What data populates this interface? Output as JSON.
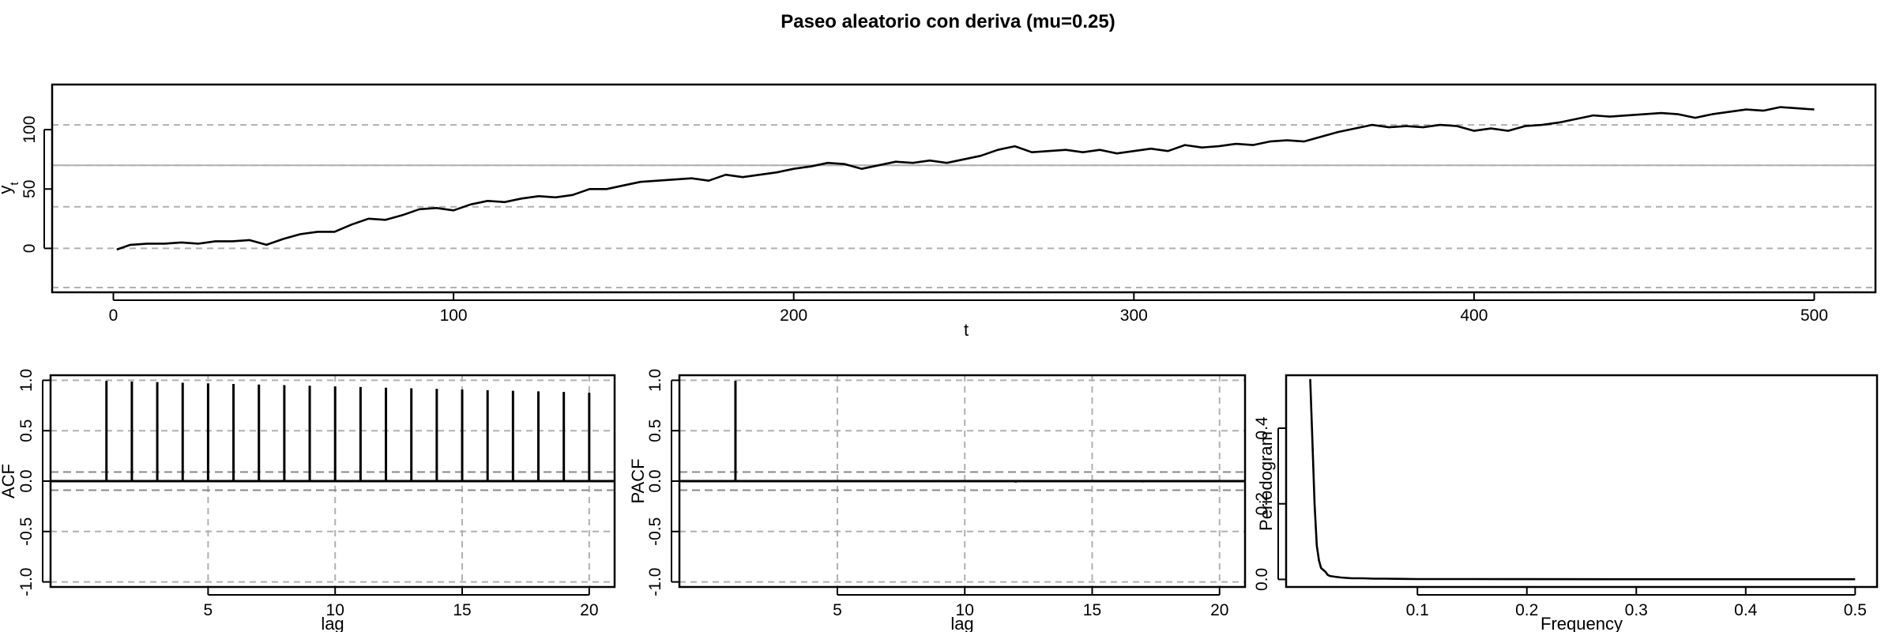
{
  "title": "Paseo aleatorio con deriva (mu=0.25)",
  "chart_data": [
    {
      "type": "line",
      "title": "",
      "xlabel": "t",
      "ylabel": "y",
      "ylabel_subscript": "t",
      "xlim": [
        -18,
        518
      ],
      "ylim": [
        -37,
        138
      ],
      "xticks": [
        0,
        100,
        200,
        300,
        400,
        500
      ],
      "yticks": [
        0,
        50,
        100
      ],
      "hlines_dashed": [
        -33,
        0,
        35,
        70,
        104,
        138
      ],
      "hline_solid": 70,
      "series": [
        {
          "x": [
            1,
            5,
            10,
            15,
            20,
            25,
            30,
            35,
            40,
            45,
            50,
            55,
            60,
            65,
            70,
            75,
            80,
            85,
            90,
            95,
            100,
            105,
            110,
            115,
            120,
            125,
            130,
            135,
            140,
            145,
            150,
            155,
            160,
            165,
            170,
            175,
            180,
            185,
            190,
            195,
            200,
            205,
            210,
            215,
            220,
            225,
            230,
            235,
            240,
            245,
            250,
            255,
            260,
            265,
            270,
            275,
            280,
            285,
            290,
            295,
            300,
            305,
            310,
            315,
            320,
            325,
            330,
            335,
            340,
            345,
            350,
            355,
            360,
            365,
            370,
            375,
            380,
            385,
            390,
            395,
            400,
            405,
            410,
            415,
            420,
            425,
            430,
            435,
            440,
            445,
            450,
            455,
            460,
            465,
            470,
            475,
            480,
            485,
            490,
            495,
            500
          ],
          "values": [
            -1,
            3,
            4,
            4,
            5,
            4,
            6,
            6,
            7,
            3,
            8,
            12,
            14,
            14,
            20,
            25,
            24,
            28,
            33,
            34,
            32,
            37,
            40,
            39,
            42,
            44,
            43,
            45,
            50,
            50,
            53,
            56,
            57,
            58,
            59,
            57,
            62,
            60,
            62,
            64,
            67,
            69,
            72,
            71,
            67,
            70,
            73,
            72,
            74,
            72,
            75,
            78,
            83,
            86,
            81,
            82,
            83,
            81,
            83,
            80,
            82,
            84,
            82,
            87,
            85,
            86,
            88,
            87,
            90,
            91,
            90,
            94,
            98,
            101,
            104,
            102,
            103,
            102,
            104,
            103,
            99,
            101,
            99,
            103,
            104,
            106,
            109,
            112,
            111,
            112,
            113,
            114,
            113,
            110,
            113,
            115,
            117,
            116,
            119,
            118,
            117
          ]
        }
      ]
    },
    {
      "type": "bar",
      "title": "",
      "xlabel": "lag",
      "ylabel": "ACF",
      "xlim": [
        -1.2,
        21
      ],
      "ylim": [
        -1.05,
        1.05
      ],
      "xticks": [
        5,
        10,
        15,
        20
      ],
      "yticks": [
        -1.0,
        -0.5,
        0.0,
        0.5,
        1.0
      ],
      "conf_limit": 0.09,
      "x": [
        1,
        2,
        3,
        4,
        5,
        6,
        7,
        8,
        9,
        10,
        11,
        12,
        13,
        14,
        15,
        16,
        17,
        18,
        19,
        20
      ],
      "values": [
        0.994,
        0.988,
        0.982,
        0.976,
        0.97,
        0.964,
        0.958,
        0.952,
        0.946,
        0.939,
        0.933,
        0.927,
        0.921,
        0.915,
        0.909,
        0.902,
        0.896,
        0.89,
        0.884,
        0.877
      ]
    },
    {
      "type": "bar",
      "title": "",
      "xlabel": "lag",
      "ylabel": "PACF",
      "xlim": [
        -1.2,
        21
      ],
      "ylim": [
        -1.05,
        1.05
      ],
      "xticks": [
        5,
        10,
        15,
        20
      ],
      "yticks": [
        -1.0,
        -0.5,
        0.0,
        0.5,
        1.0
      ],
      "conf_limit": 0.09,
      "x": [
        1,
        2,
        3,
        4,
        5,
        6,
        7,
        8,
        9,
        10,
        11,
        12,
        13,
        14,
        15,
        16,
        17,
        18,
        19,
        20
      ],
      "values": [
        0.994,
        -0.005,
        0.004,
        0.003,
        0.006,
        -0.004,
        0.003,
        0.002,
        0.012,
        -0.003,
        0.004,
        -0.015,
        0.002,
        0.003,
        -0.004,
        0.006,
        -0.013,
        0.004,
        -0.003,
        0.002
      ]
    },
    {
      "type": "line",
      "title": "",
      "xlabel": "Frequency",
      "ylabel": "Periodogram",
      "xlim": [
        -0.02,
        0.52
      ],
      "ylim": [
        -0.02,
        0.54
      ],
      "xticks": [
        0.1,
        0.2,
        0.3,
        0.4,
        0.5
      ],
      "yticks": [
        0.0,
        0.2,
        0.4
      ],
      "series": [
        {
          "x": [
            0.002,
            0.004,
            0.006,
            0.008,
            0.01,
            0.012,
            0.014,
            0.016,
            0.018,
            0.02,
            0.025,
            0.03,
            0.035,
            0.04,
            0.05,
            0.06,
            0.07,
            0.08,
            0.1,
            0.15,
            0.2,
            0.3,
            0.4,
            0.5
          ],
          "values": [
            0.53,
            0.37,
            0.2,
            0.09,
            0.05,
            0.03,
            0.025,
            0.02,
            0.012,
            0.009,
            0.007,
            0.005,
            0.004,
            0.003,
            0.003,
            0.002,
            0.002,
            0.0015,
            0.001,
            0.0008,
            0.0006,
            0.0005,
            0.0004,
            0.0004
          ]
        }
      ]
    }
  ]
}
